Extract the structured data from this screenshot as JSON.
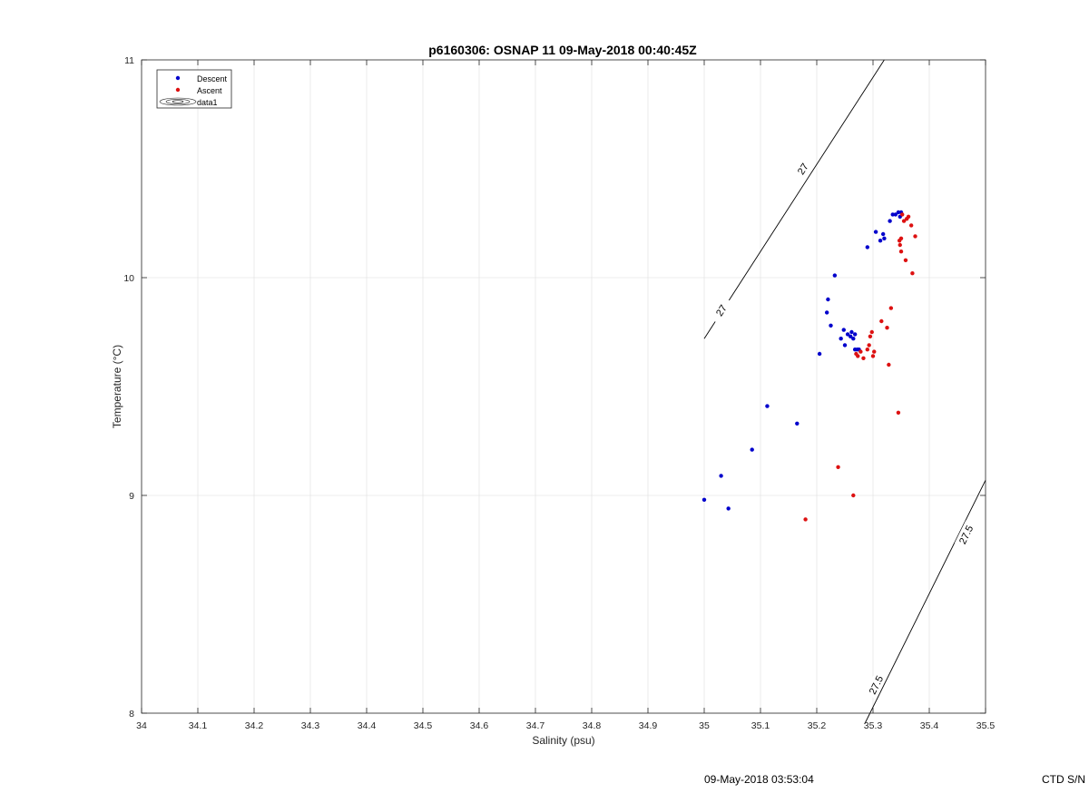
{
  "footer": {
    "timestamp": "09-May-2018 03:53:04",
    "serial": "CTD S/N"
  },
  "colors": {
    "descent": "#0000cc",
    "ascent": "#dd1111",
    "grid": "#e6e6e6",
    "axis": "#262626"
  },
  "chart_data": {
    "type": "scatter",
    "title": "p6160306: OSNAP 11 09-May-2018 00:40:45Z",
    "xlabel": "Salinity (psu)",
    "ylabel": "Temperature (°C)",
    "xlim": [
      34,
      35.5
    ],
    "ylim": [
      8,
      11
    ],
    "xticks": [
      34,
      34.1,
      34.2,
      34.3,
      34.4,
      34.5,
      34.6,
      34.7,
      34.8,
      34.9,
      35,
      35.1,
      35.2,
      35.3,
      35.4,
      35.5
    ],
    "xtick_labels": [
      "34",
      "34.1",
      "34.2",
      "34.3",
      "34.4",
      "34.5",
      "34.6",
      "34.7",
      "34.8",
      "34.9",
      "35",
      "35.1",
      "35.2",
      "35.3",
      "35.4",
      "35.5"
    ],
    "yticks": [
      8,
      9,
      10,
      11
    ],
    "ytick_labels": [
      "8",
      "9",
      "10",
      "11"
    ],
    "grid": true,
    "legend_position": "top-left",
    "legend": [
      "Descent",
      "Ascent",
      "data1"
    ],
    "series": [
      {
        "name": "Descent",
        "color": "#0000cc",
        "points": [
          [
            35.0,
            8.98
          ],
          [
            35.03,
            9.09
          ],
          [
            35.043,
            8.94
          ],
          [
            35.085,
            9.21
          ],
          [
            35.112,
            9.41
          ],
          [
            35.165,
            9.33
          ],
          [
            35.205,
            9.65
          ],
          [
            35.218,
            9.84
          ],
          [
            35.22,
            9.9
          ],
          [
            35.225,
            9.78
          ],
          [
            35.232,
            10.01
          ],
          [
            35.243,
            9.72
          ],
          [
            35.248,
            9.76
          ],
          [
            35.25,
            9.69
          ],
          [
            35.255,
            9.74
          ],
          [
            35.26,
            9.73
          ],
          [
            35.262,
            9.75
          ],
          [
            35.265,
            9.72
          ],
          [
            35.268,
            9.74
          ],
          [
            35.268,
            9.67
          ],
          [
            35.272,
            9.67
          ],
          [
            35.275,
            9.67
          ],
          [
            35.29,
            10.14
          ],
          [
            35.305,
            10.21
          ],
          [
            35.313,
            10.17
          ],
          [
            35.318,
            10.2
          ],
          [
            35.32,
            10.18
          ],
          [
            35.33,
            10.26
          ],
          [
            35.335,
            10.29
          ],
          [
            35.34,
            10.29
          ],
          [
            35.345,
            10.3
          ],
          [
            35.35,
            10.3
          ],
          [
            35.348,
            10.28
          ]
        ]
      },
      {
        "name": "Ascent",
        "color": "#dd1111",
        "points": [
          [
            35.18,
            8.89
          ],
          [
            35.238,
            9.13
          ],
          [
            35.265,
            9.0
          ],
          [
            35.27,
            9.65
          ],
          [
            35.273,
            9.64
          ],
          [
            35.278,
            9.66
          ],
          [
            35.283,
            9.63
          ],
          [
            35.29,
            9.67
          ],
          [
            35.293,
            9.69
          ],
          [
            35.295,
            9.73
          ],
          [
            35.298,
            9.75
          ],
          [
            35.3,
            9.64
          ],
          [
            35.302,
            9.66
          ],
          [
            35.315,
            9.8
          ],
          [
            35.325,
            9.77
          ],
          [
            35.328,
            9.6
          ],
          [
            35.332,
            9.86
          ],
          [
            35.345,
            9.38
          ],
          [
            35.347,
            10.17
          ],
          [
            35.348,
            10.15
          ],
          [
            35.35,
            10.12
          ],
          [
            35.35,
            10.18
          ],
          [
            35.352,
            10.29
          ],
          [
            35.355,
            10.26
          ],
          [
            35.358,
            10.08
          ],
          [
            35.36,
            10.27
          ],
          [
            35.363,
            10.28
          ],
          [
            35.368,
            10.24
          ],
          [
            35.37,
            10.02
          ],
          [
            35.375,
            10.19
          ]
        ]
      }
    ],
    "isopycnals": [
      {
        "label": "27",
        "points": [
          [
            35.0,
            9.72
          ],
          [
            35.32,
            11.0
          ]
        ],
        "label_positions": [
          [
            35.03,
            9.85
          ],
          [
            35.175,
            10.5
          ]
        ]
      },
      {
        "label": "27.5",
        "points": [
          [
            35.285,
            7.95
          ],
          [
            35.5,
            9.07
          ]
        ],
        "label_positions": [
          [
            35.305,
            8.13
          ],
          [
            35.465,
            8.82
          ]
        ]
      }
    ]
  }
}
